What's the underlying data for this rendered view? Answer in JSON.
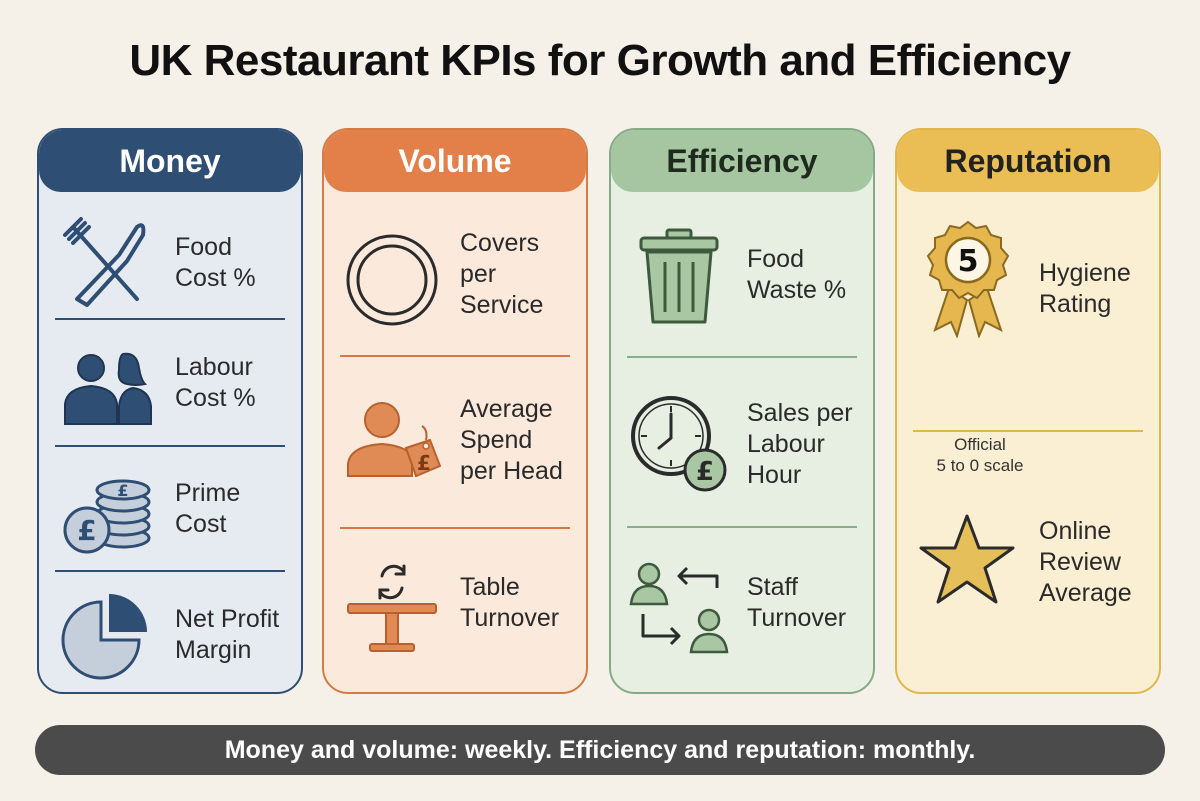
{
  "title": "UK Restaurant KPIs for Growth and Efficiency",
  "columns": {
    "money": {
      "heading": "Money",
      "items": [
        {
          "label": "Food\nCost %",
          "icon": "fork-knife-icon"
        },
        {
          "label": "Labour\nCost %",
          "icon": "people-icon"
        },
        {
          "label": "Prime\nCost",
          "icon": "pound-coins-icon"
        },
        {
          "label": "Net Profit\nMargin",
          "icon": "pie-chart-icon"
        }
      ]
    },
    "volume": {
      "heading": "Volume",
      "items": [
        {
          "label": "Covers\nper\nService",
          "icon": "plate-icon"
        },
        {
          "label": "Average\nSpend\nper Head",
          "icon": "person-price-tag-icon"
        },
        {
          "label": "Table\nTurnover",
          "icon": "table-refresh-icon"
        }
      ]
    },
    "efficiency": {
      "heading": "Efficiency",
      "items": [
        {
          "label": "Food\nWaste %",
          "icon": "bin-icon"
        },
        {
          "label": "Sales per\nLabour\nHour",
          "icon": "clock-pound-icon"
        },
        {
          "label": "Staff\nTurnover",
          "icon": "staff-swap-icon"
        }
      ]
    },
    "reputation": {
      "heading": "Reputation",
      "items": [
        {
          "label": "Hygiene\nRating",
          "icon": "rating-rosette-icon",
          "badge": "5",
          "note": "Official\n5 to 0 scale"
        },
        {
          "label": "Online\nReview\nAverage",
          "icon": "star-icon"
        }
      ]
    }
  },
  "footer": "Money and volume: weekly. Efficiency and reputation: monthly.",
  "colors": {
    "money": "#2f4e73",
    "volume": "#e37f48",
    "efficiency": "#a6c5a1",
    "reputation": "#ebbe55",
    "background": "#f6f1e8",
    "footer": "#4b4b4b"
  }
}
